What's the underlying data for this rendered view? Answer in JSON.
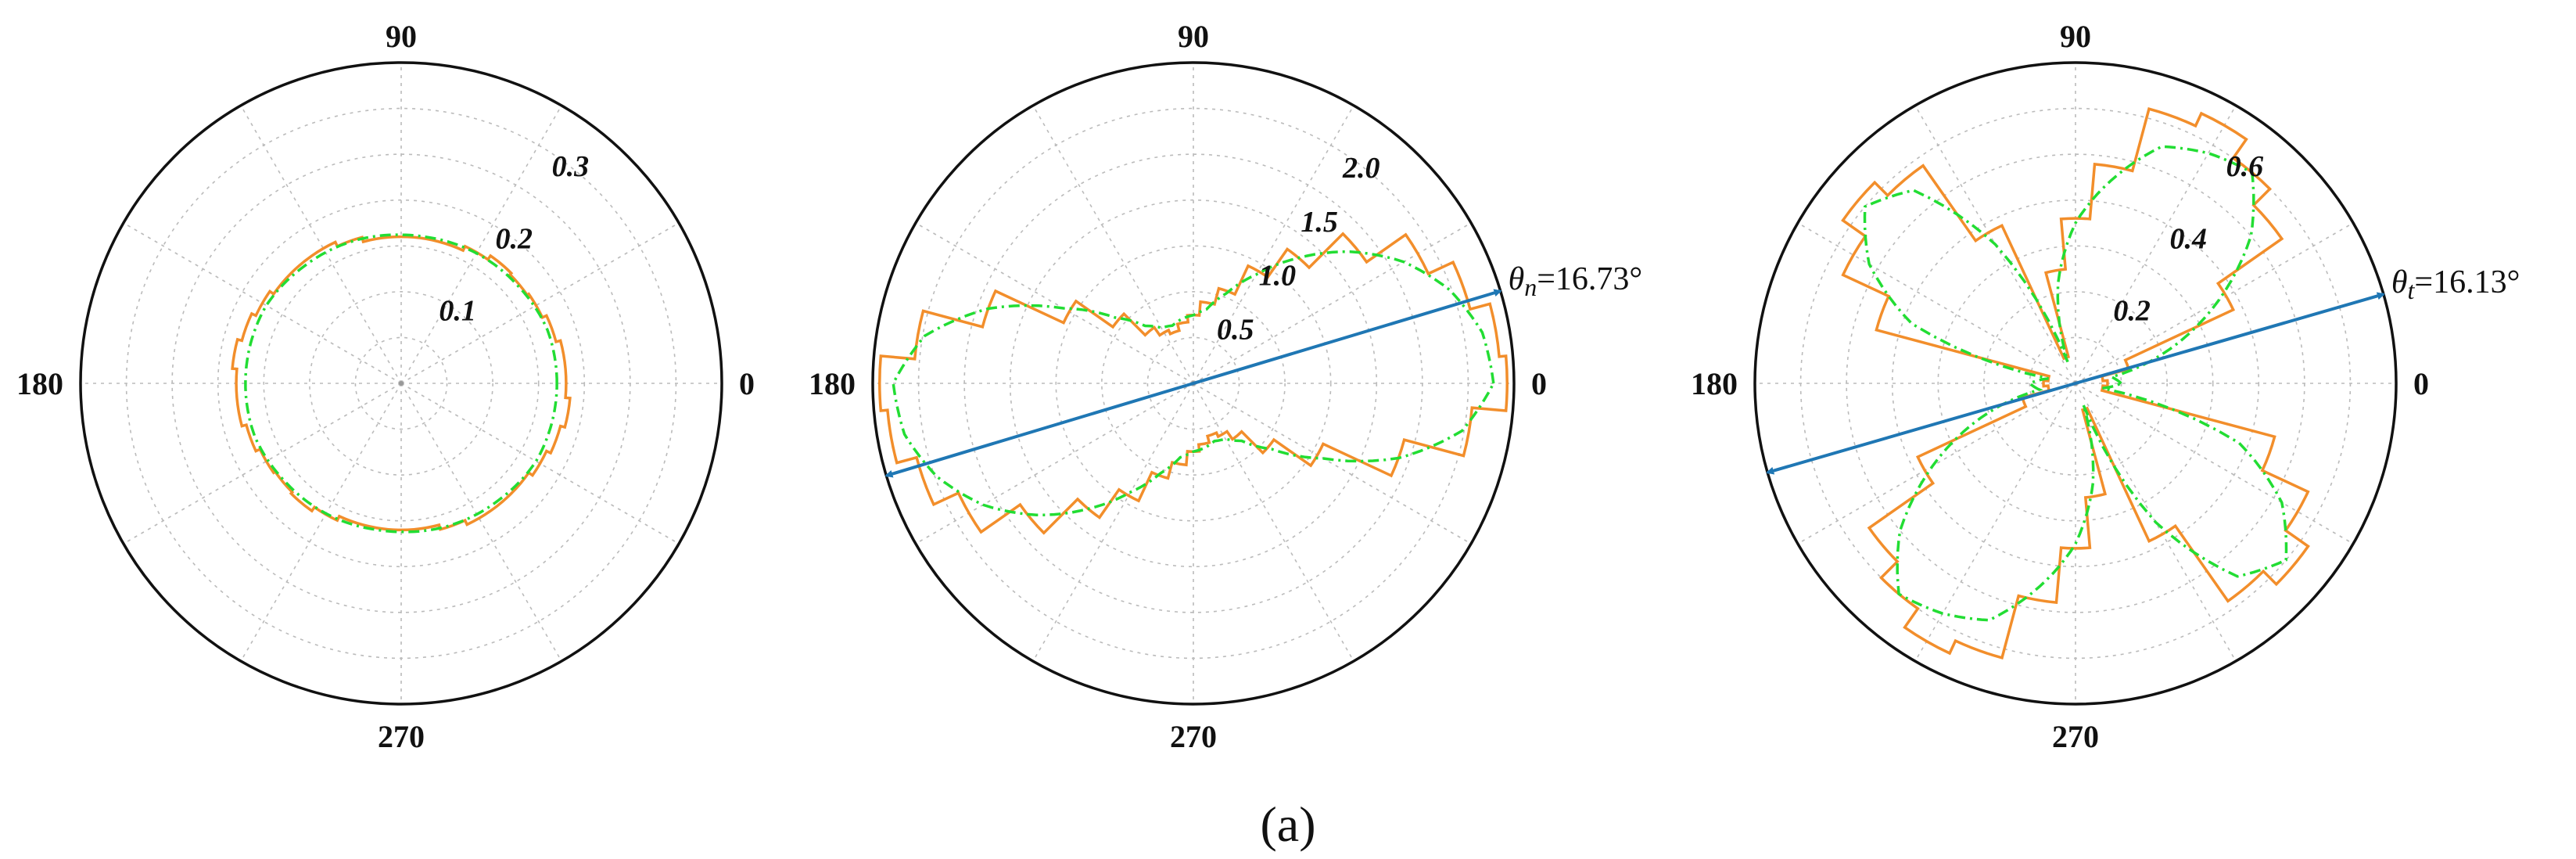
{
  "figure_caption": "(a)",
  "colors": {
    "measured": "#f28e2b",
    "fitted": "#22dd33",
    "principal_axis": "#1f77b4",
    "grid": "#bbbbbb",
    "frame": "#111111"
  },
  "chart_data": [
    {
      "type": "polar-histogram",
      "angle_ticks": [
        "0",
        "90",
        "180",
        "270"
      ],
      "r_max": 0.35,
      "r_ticks": [
        {
          "value": 0.1,
          "label": "0.1"
        },
        {
          "value": 0.2,
          "label": "0.2"
        },
        {
          "value": 0.3,
          "label": "0.3"
        }
      ],
      "grid": true,
      "symmetric": true,
      "theta_deg": [
        0,
        10,
        20,
        30,
        40,
        50,
        60,
        70,
        80,
        90,
        100,
        110,
        120,
        130,
        140,
        150,
        160,
        170
      ],
      "measured": [
        0.18,
        0.18,
        0.175,
        0.17,
        0.168,
        0.17,
        0.165,
        0.16,
        0.16,
        0.16,
        0.16,
        0.165,
        0.17,
        0.17,
        0.17,
        0.175,
        0.18,
        0.185
      ],
      "fitted": [
        0.17,
        0.17,
        0.17,
        0.168,
        0.166,
        0.165,
        0.164,
        0.163,
        0.162,
        0.162,
        0.163,
        0.164,
        0.165,
        0.166,
        0.168,
        0.17,
        0.17,
        0.17
      ],
      "principal_direction": null
    },
    {
      "type": "polar-histogram",
      "angle_ticks": [
        "0",
        "90",
        "180",
        "270"
      ],
      "r_max": 2.35,
      "r_ticks": [
        {
          "value": 0.5,
          "label": "0.5"
        },
        {
          "value": 1.0,
          "label": "1.0"
        },
        {
          "value": 1.5,
          "label": "1.5"
        },
        {
          "value": 2.0,
          "label": "2.0"
        }
      ],
      "grid": true,
      "symmetric": true,
      "theta_deg": [
        0,
        10,
        20,
        30,
        40,
        50,
        60,
        70,
        80,
        90,
        100,
        110,
        120,
        130,
        140,
        150,
        160,
        170
      ],
      "measured": [
        2.3,
        2.25,
        2.1,
        1.9,
        1.55,
        1.2,
        0.95,
        0.72,
        0.6,
        0.5,
        0.45,
        0.4,
        0.43,
        0.5,
        0.72,
        1.05,
        1.6,
        2.05
      ],
      "fitted": [
        2.2,
        2.15,
        2.0,
        1.78,
        1.5,
        1.2,
        0.92,
        0.7,
        0.55,
        0.5,
        0.48,
        0.45,
        0.47,
        0.55,
        0.75,
        1.1,
        1.6,
        2.0
      ],
      "principal_direction": {
        "angle_deg": 16.73,
        "prefix": "θ",
        "subscript": "n",
        "value_text": "=16.73°"
      }
    },
    {
      "type": "polar-histogram",
      "angle_ticks": [
        "0",
        "90",
        "180",
        "270"
      ],
      "r_max": 0.7,
      "r_ticks": [
        {
          "value": 0.2,
          "label": "0.2"
        },
        {
          "value": 0.4,
          "label": "0.4"
        },
        {
          "value": 0.6,
          "label": "0.6"
        }
      ],
      "grid": true,
      "symmetric": true,
      "theta_deg": [
        0,
        10,
        20,
        30,
        40,
        50,
        60,
        70,
        80,
        90,
        100,
        110,
        120,
        130,
        140,
        150,
        160,
        170
      ],
      "measured": [
        0.07,
        0.06,
        0.12,
        0.38,
        0.55,
        0.6,
        0.65,
        0.62,
        0.48,
        0.36,
        0.25,
        0.06,
        0.38,
        0.58,
        0.62,
        0.56,
        0.45,
        0.06
      ],
      "fitted": [
        0.1,
        0.08,
        0.22,
        0.36,
        0.5,
        0.6,
        0.58,
        0.55,
        0.45,
        0.35,
        0.22,
        0.05,
        0.35,
        0.55,
        0.6,
        0.52,
        0.38,
        0.06
      ],
      "principal_direction": {
        "angle_deg": 16.13,
        "prefix": "θ",
        "subscript": "t",
        "value_text": "=16.13°"
      }
    }
  ]
}
